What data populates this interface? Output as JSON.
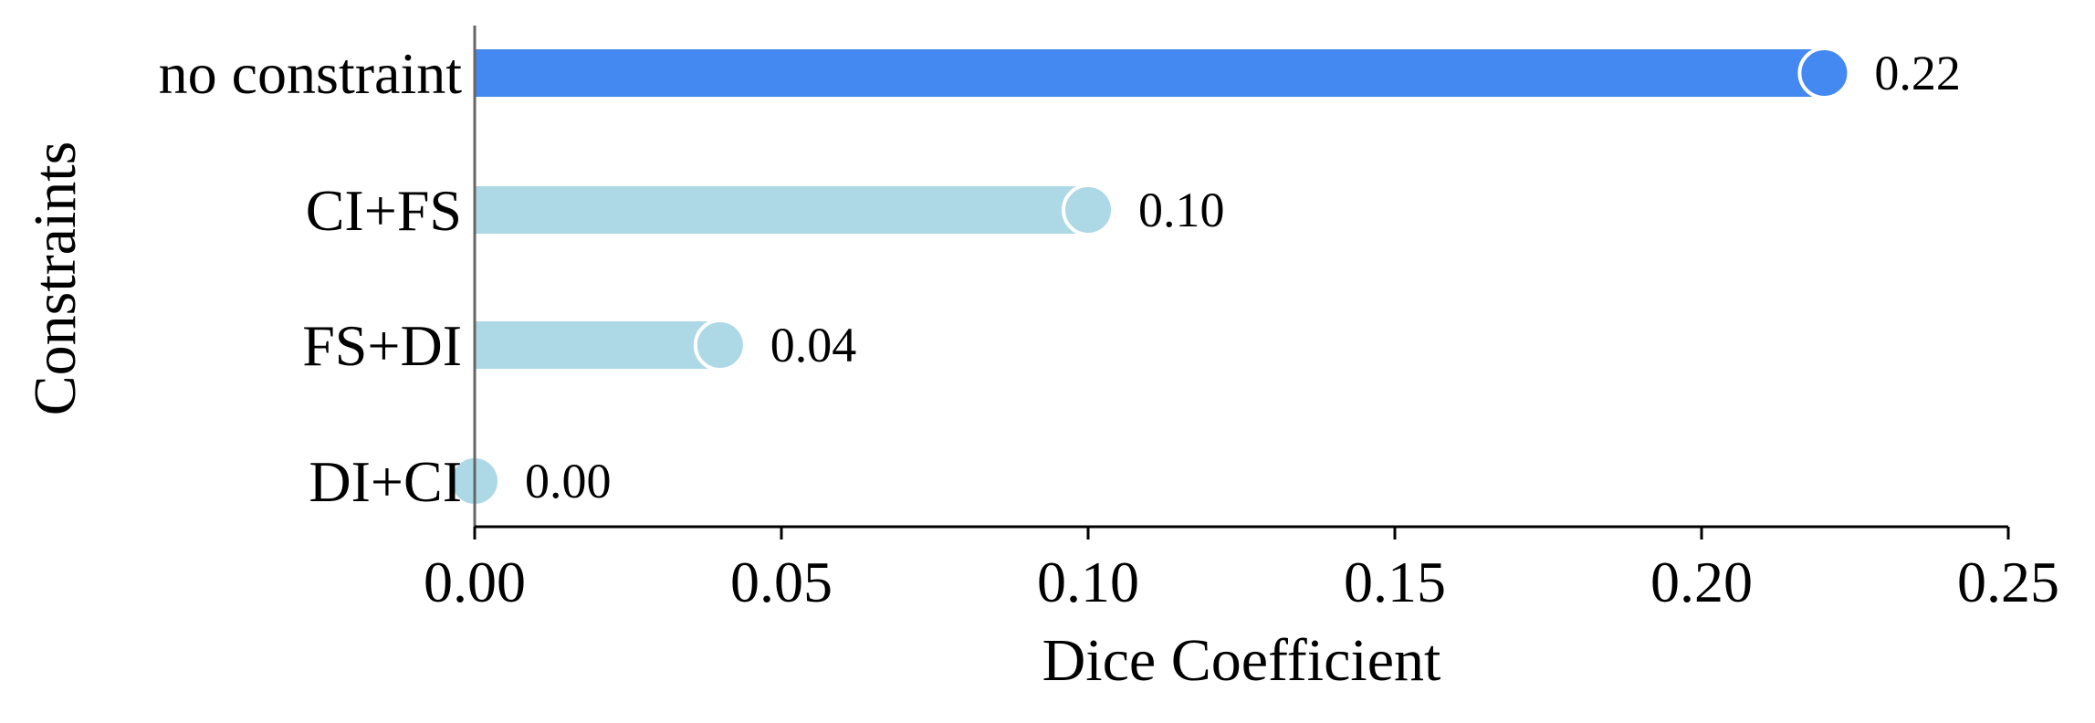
{
  "chart_data": {
    "type": "bar",
    "orientation": "horizontal",
    "title": "",
    "xlabel": "Dice Coefficient",
    "ylabel": "Constraints",
    "categories": [
      "no constraint",
      "CI+FS",
      "FS+DI",
      "DI+CI"
    ],
    "values": [
      0.22,
      0.1,
      0.04,
      0.0
    ],
    "value_labels": [
      "0.22",
      "0.10",
      "0.04",
      "0.00"
    ],
    "bar_colors": [
      "#4488f2",
      "#add8e6",
      "#add8e6",
      "#add8e6"
    ],
    "xlim": [
      0,
      0.25
    ],
    "xticks": [
      0.0,
      0.05,
      0.1,
      0.15,
      0.2,
      0.25
    ],
    "xtick_labels": [
      "0.00",
      "0.05",
      "0.10",
      "0.15",
      "0.20",
      "0.25"
    ],
    "grid": false,
    "legend": null,
    "marker": "circle-at-bar-end"
  }
}
